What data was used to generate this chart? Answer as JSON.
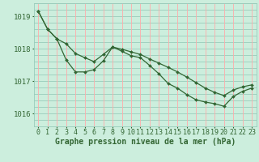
{
  "title": "Graphe pression niveau de la mer (hPa)",
  "background_color": "#cceedd",
  "vgrid_color": "#ffaaaa",
  "hgrid_color": "#99ccbb",
  "line_color": "#336633",
  "marker_color": "#336633",
  "ylim": [
    1015.6,
    1019.4
  ],
  "yticks": [
    1016,
    1017,
    1018,
    1019
  ],
  "xlim": [
    -0.5,
    23.5
  ],
  "xticks": [
    0,
    1,
    2,
    3,
    4,
    5,
    6,
    7,
    8,
    9,
    10,
    11,
    12,
    13,
    14,
    15,
    16,
    17,
    18,
    19,
    20,
    21,
    22,
    23
  ],
  "line_a": [
    1019.15,
    1018.6,
    1018.3,
    1018.15,
    1017.85,
    1017.72,
    1017.6,
    1017.82,
    1018.05,
    1017.98,
    1017.9,
    1017.82,
    1017.68,
    1017.55,
    1017.42,
    1017.28,
    1017.12,
    1016.95,
    1016.78,
    1016.65,
    1016.55,
    1016.72,
    1016.82,
    1016.88
  ],
  "line_b": [
    1019.15,
    1018.6,
    1018.3,
    1017.65,
    1017.28,
    1017.28,
    1017.35,
    1017.62,
    1018.05,
    1017.92,
    1017.78,
    1017.72,
    1017.48,
    1017.22,
    1016.92,
    1016.78,
    1016.58,
    1016.42,
    1016.35,
    1016.3,
    1016.22,
    1016.52,
    1016.68,
    1016.78
  ],
  "label_fontsize": 6.5,
  "title_fontsize": 7.0
}
